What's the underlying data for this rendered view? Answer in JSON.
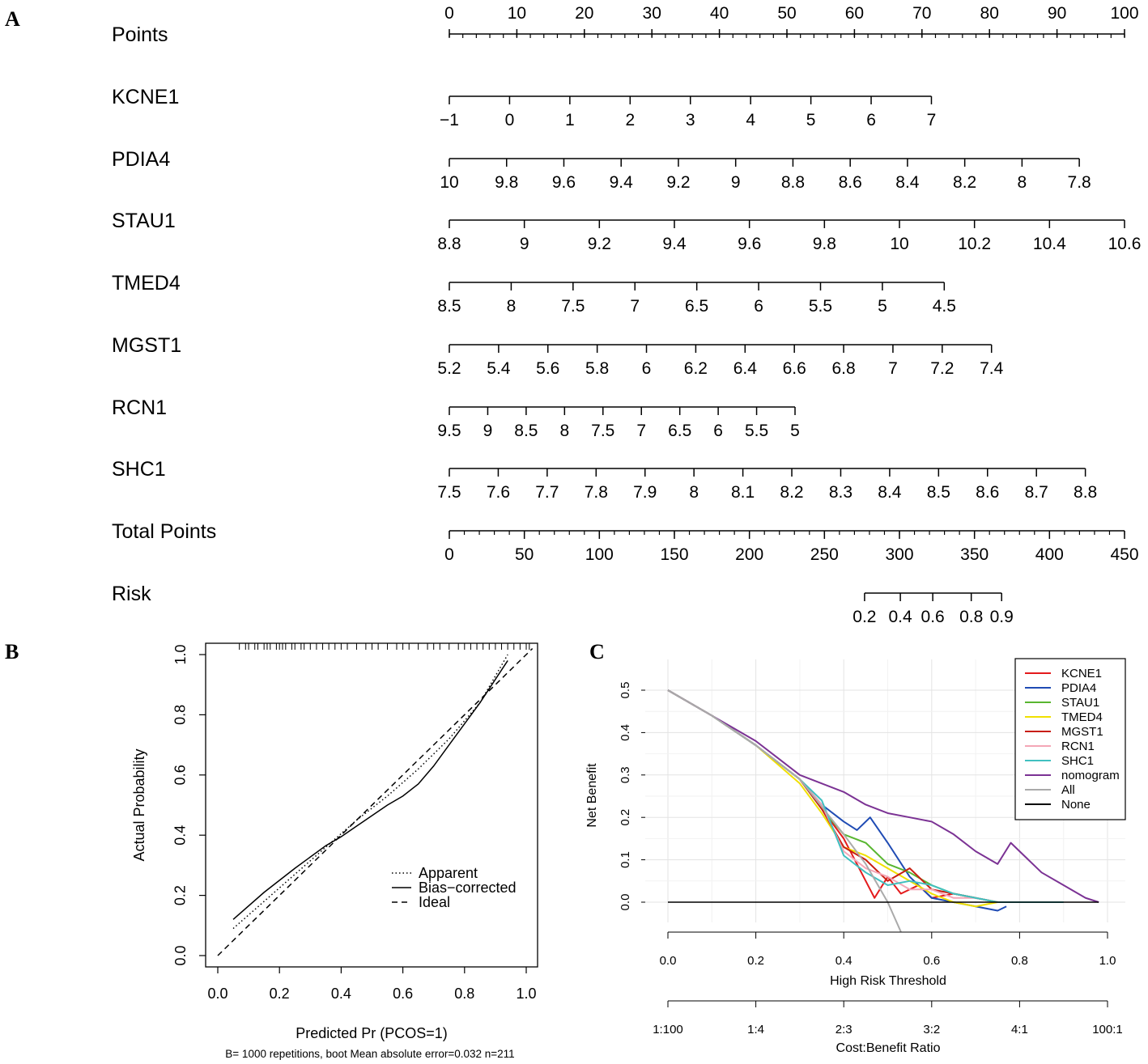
{
  "panels": {
    "a": "A",
    "b": "B",
    "c": "C"
  },
  "chart_data": [
    {
      "type": "nomogram",
      "panel": "A",
      "rows": [
        {
          "label": "Points",
          "ticks": [
            "0",
            "10",
            "20",
            "30",
            "40",
            "50",
            "60",
            "70",
            "80",
            "90",
            "100"
          ],
          "start": 0,
          "end": 100,
          "minor": 50,
          "labels_above": true
        },
        {
          "label": "KCNE1",
          "ticks": [
            "−1",
            "0",
            "1",
            "2",
            "3",
            "4",
            "5",
            "6",
            "7"
          ],
          "start": 0,
          "end": 71.4
        },
        {
          "label": "PDIA4",
          "ticks": [
            "10",
            "9.8",
            "9.6",
            "9.4",
            "9.2",
            "9",
            "8.8",
            "8.6",
            "8.4",
            "8.2",
            "8",
            "7.8"
          ],
          "start": 0,
          "end": 93.3
        },
        {
          "label": "STAU1",
          "ticks": [
            "8.8",
            "9",
            "9.2",
            "9.4",
            "9.6",
            "9.8",
            "10",
            "10.2",
            "10.4",
            "10.6"
          ],
          "start": 0,
          "end": 100
        },
        {
          "label": "TMED4",
          "ticks": [
            "8.5",
            "8",
            "7.5",
            "7",
            "6.5",
            "6",
            "5.5",
            "5",
            "4.5"
          ],
          "start": 0,
          "end": 73.3
        },
        {
          "label": "MGST1",
          "ticks": [
            "5.2",
            "5.4",
            "5.6",
            "5.8",
            "6",
            "6.2",
            "6.4",
            "6.6",
            "6.8",
            "7",
            "7.2",
            "7.4"
          ],
          "start": 0,
          "end": 80.3
        },
        {
          "label": "RCN1",
          "ticks": [
            "9.5",
            "9",
            "8.5",
            "8",
            "7.5",
            "7",
            "6.5",
            "6",
            "5.5",
            "5"
          ],
          "start": 0,
          "end": 51.2
        },
        {
          "label": "SHC1",
          "ticks": [
            "7.5",
            "7.6",
            "7.7",
            "7.8",
            "7.9",
            "8",
            "8.1",
            "8.2",
            "8.3",
            "8.4",
            "8.5",
            "8.6",
            "8.7",
            "8.8"
          ],
          "start": 0,
          "end": 94.2
        },
        {
          "label": "Total Points",
          "ticks": [
            "0",
            "50",
            "100",
            "150",
            "200",
            "250",
            "300",
            "350",
            "400",
            "450"
          ],
          "start": 0,
          "end": 100,
          "minor": 45
        },
        {
          "label": "Risk",
          "ticks": [
            "0.2",
            "0.4",
            "0.6",
            "0.8",
            "0.9"
          ],
          "positions": [
            61.5,
            66.8,
            71.6,
            77.3,
            81.8
          ],
          "start": 61.5,
          "end": 81.8
        }
      ]
    },
    {
      "type": "line",
      "panel": "B",
      "xlabel": "Predicted Pr (PCOS=1)",
      "ylabel": "Actual Probability",
      "xlim": [
        0,
        1
      ],
      "ylim": [
        0,
        1
      ],
      "xticks": [
        "0.0",
        "0.2",
        "0.4",
        "0.6",
        "0.8",
        "1.0"
      ],
      "yticks": [
        "0.0",
        "0.2",
        "0.4",
        "0.6",
        "0.8",
        "1.0"
      ],
      "footnote": "B= 1000 repetitions, boot      Mean absolute error=0.032 n=211",
      "series": [
        {
          "name": "Apparent",
          "style": "dotted",
          "x": [
            0.05,
            0.15,
            0.25,
            0.35,
            0.45,
            0.55,
            0.65,
            0.75,
            0.85,
            0.94
          ],
          "y": [
            0.09,
            0.18,
            0.27,
            0.36,
            0.45,
            0.53,
            0.62,
            0.72,
            0.84,
            1.0
          ]
        },
        {
          "name": "Bias−corrected",
          "style": "solid",
          "x": [
            0.05,
            0.15,
            0.25,
            0.35,
            0.4,
            0.45,
            0.5,
            0.55,
            0.6,
            0.65,
            0.7,
            0.75,
            0.8,
            0.85,
            0.94
          ],
          "y": [
            0.12,
            0.21,
            0.29,
            0.365,
            0.395,
            0.43,
            0.465,
            0.5,
            0.53,
            0.57,
            0.63,
            0.7,
            0.77,
            0.84,
            0.98
          ]
        },
        {
          "name": "Ideal",
          "style": "dashed",
          "x": [
            0.0,
            1.02
          ],
          "y": [
            0.0,
            1.02
          ]
        }
      ],
      "rug": [
        0.07,
        0.09,
        0.1,
        0.12,
        0.13,
        0.15,
        0.16,
        0.17,
        0.19,
        0.2,
        0.21,
        0.22,
        0.24,
        0.25,
        0.27,
        0.28,
        0.3,
        0.32,
        0.34,
        0.36,
        0.38,
        0.4,
        0.42,
        0.45,
        0.48,
        0.5,
        0.52,
        0.55,
        0.58,
        0.6,
        0.62,
        0.65,
        0.68,
        0.7,
        0.72,
        0.75,
        0.78,
        0.8,
        0.82,
        0.84,
        0.86,
        0.88,
        0.9,
        0.92,
        0.94,
        0.96,
        0.98,
        1.0,
        1.01
      ]
    },
    {
      "type": "line",
      "panel": "C",
      "xlabel": "High Risk Threshold",
      "ylabel": "Net Benefit",
      "xlim": [
        0,
        1
      ],
      "ylim": [
        -0.07,
        0.5
      ],
      "xticks": [
        "0.0",
        "0.2",
        "0.4",
        "0.6",
        "0.8",
        "1.0"
      ],
      "yticks": [
        "0.0",
        "0.1",
        "0.2",
        "0.3",
        "0.4",
        "0.5"
      ],
      "x2label": "Cost:Benefit Ratio",
      "x2ticks": [
        "1:100",
        "1:4",
        "2:3",
        "3:2",
        "4:1",
        "100:1"
      ],
      "series": [
        {
          "name": "KCNE1",
          "color": "#e41a1c",
          "x": [
            0,
            0.1,
            0.2,
            0.3,
            0.35,
            0.4,
            0.45,
            0.47,
            0.5,
            0.53,
            0.57,
            0.6,
            0.65,
            0.7,
            0.75
          ],
          "y": [
            0.5,
            0.44,
            0.37,
            0.29,
            0.22,
            0.15,
            0.05,
            0.01,
            0.06,
            0.02,
            0.04,
            0.01,
            0.02,
            0.01,
            0
          ]
        },
        {
          "name": "PDIA4",
          "color": "#1f4bb4",
          "x": [
            0,
            0.1,
            0.2,
            0.3,
            0.35,
            0.4,
            0.43,
            0.46,
            0.5,
            0.55,
            0.6,
            0.65,
            0.7,
            0.75,
            0.77
          ],
          "y": [
            0.5,
            0.44,
            0.37,
            0.29,
            0.23,
            0.19,
            0.17,
            0.2,
            0.14,
            0.06,
            0.01,
            0,
            -0.01,
            -0.02,
            -0.01
          ]
        },
        {
          "name": "STAU1",
          "color": "#58b630",
          "x": [
            0,
            0.1,
            0.2,
            0.3,
            0.35,
            0.4,
            0.45,
            0.5,
            0.55,
            0.6,
            0.65,
            0.7,
            0.75
          ],
          "y": [
            0.5,
            0.44,
            0.37,
            0.29,
            0.22,
            0.16,
            0.14,
            0.09,
            0.07,
            0.04,
            0.02,
            0.01,
            0
          ]
        },
        {
          "name": "TMED4",
          "color": "#f0e000",
          "x": [
            0,
            0.1,
            0.2,
            0.3,
            0.35,
            0.4,
            0.45,
            0.5,
            0.55,
            0.6,
            0.65,
            0.7,
            0.75,
            0.8
          ],
          "y": [
            0.5,
            0.44,
            0.37,
            0.28,
            0.21,
            0.13,
            0.11,
            0.08,
            0.05,
            0.02,
            0,
            -0.01,
            0,
            0
          ]
        },
        {
          "name": "MGST1",
          "color": "#c81d10",
          "x": [
            0,
            0.1,
            0.2,
            0.3,
            0.35,
            0.4,
            0.45,
            0.5,
            0.55,
            0.6,
            0.65,
            0.7,
            0.75
          ],
          "y": [
            0.5,
            0.44,
            0.37,
            0.29,
            0.22,
            0.13,
            0.1,
            0.05,
            0.08,
            0.03,
            0.02,
            0.01,
            0
          ]
        },
        {
          "name": "RCN1",
          "color": "#f4a6b6",
          "x": [
            0,
            0.1,
            0.2,
            0.3,
            0.35,
            0.4,
            0.45,
            0.5,
            0.55,
            0.6,
            0.65,
            0.7,
            0.75
          ],
          "y": [
            0.5,
            0.44,
            0.37,
            0.29,
            0.23,
            0.12,
            0.08,
            0.06,
            0.03,
            0.03,
            0.01,
            0.01,
            0
          ]
        },
        {
          "name": "SHC1",
          "color": "#40c0c0",
          "x": [
            0,
            0.1,
            0.2,
            0.3,
            0.35,
            0.4,
            0.45,
            0.5,
            0.55,
            0.6,
            0.65,
            0.7,
            0.75,
            0.8,
            0.85,
            0.9
          ],
          "y": [
            0.5,
            0.44,
            0.37,
            0.29,
            0.24,
            0.11,
            0.07,
            0.04,
            0.05,
            0.04,
            0.02,
            0.01,
            0,
            0,
            0,
            0
          ]
        },
        {
          "name": "nomogram",
          "color": "#7b3294",
          "x": [
            0,
            0.1,
            0.15,
            0.2,
            0.25,
            0.3,
            0.35,
            0.4,
            0.45,
            0.5,
            0.55,
            0.6,
            0.65,
            0.7,
            0.75,
            0.78,
            0.8,
            0.85,
            0.9,
            0.95,
            0.98
          ],
          "y": [
            0.5,
            0.44,
            0.41,
            0.38,
            0.34,
            0.3,
            0.28,
            0.26,
            0.23,
            0.21,
            0.2,
            0.19,
            0.16,
            0.12,
            0.09,
            0.14,
            0.12,
            0.07,
            0.04,
            0.01,
            0
          ]
        },
        {
          "name": "All",
          "color": "#aaaaaa",
          "x": [
            0,
            0.1,
            0.2,
            0.3,
            0.4,
            0.45,
            0.5,
            0.53
          ],
          "y": [
            0.5,
            0.44,
            0.37,
            0.29,
            0.16,
            0.09,
            0,
            -0.07
          ]
        },
        {
          "name": "None",
          "color": "#000000",
          "x": [
            0,
            0.98
          ],
          "y": [
            0,
            0
          ]
        }
      ]
    }
  ]
}
